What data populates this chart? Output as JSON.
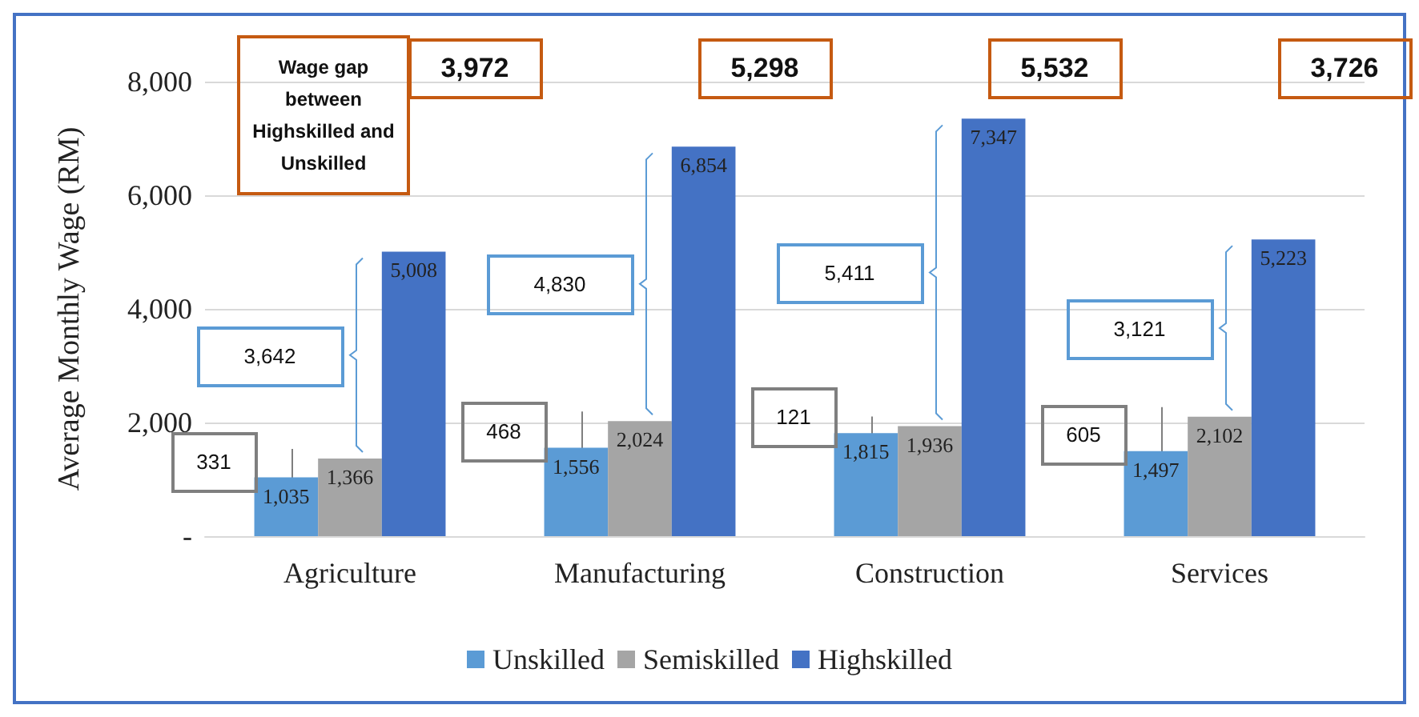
{
  "chart_data": {
    "type": "bar",
    "ylabel": "Average Monthly Wage (RM)",
    "categories": [
      "Agriculture",
      "Manufacturing",
      "Construction",
      "Services"
    ],
    "series": [
      {
        "name": "Unskilled",
        "color": "#5b9bd5",
        "values": [
          1035,
          1556,
          1815,
          1497
        ],
        "value_labels": [
          "1,035",
          "1,556",
          "1,815",
          "1,497"
        ]
      },
      {
        "name": "Semiskilled",
        "color": "#a5a5a5",
        "values": [
          1366,
          2024,
          1936,
          2102
        ],
        "value_labels": [
          "1,366",
          "2,024",
          "1,936",
          "2,102"
        ]
      },
      {
        "name": "Highskilled",
        "color": "#4472c4",
        "values": [
          5008,
          6854,
          7347,
          5223
        ],
        "value_labels": [
          "5,008",
          "6,854",
          "7,347",
          "5,223"
        ]
      }
    ],
    "ylim": [
      0,
      8000
    ],
    "yticks": [
      {
        "value": 0,
        "label": "-"
      },
      {
        "value": 2000,
        "label": "2,000"
      },
      {
        "value": 4000,
        "label": "4,000"
      },
      {
        "value": 6000,
        "label": "6,000"
      },
      {
        "value": 8000,
        "label": "8,000"
      }
    ],
    "grid": "y",
    "legend": "bottom",
    "annotations": [
      "Wage gap between Highskilled and Unskilled",
      "3,972",
      "5,298",
      "5,532",
      "3,726",
      "3,642",
      "4,830",
      "5,411",
      "3,121",
      "331",
      "468",
      "121",
      "605"
    ]
  }
}
